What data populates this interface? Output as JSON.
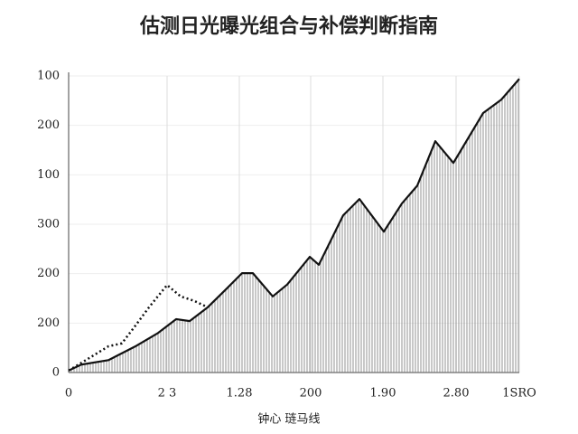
{
  "chart_data": {
    "type": "line",
    "title": "估测日光曝光组合与补偿判断指南",
    "x_label": "钟心 琏马线",
    "xlim": [
      0,
      499
    ],
    "ylim": [
      0,
      600
    ],
    "xticks": [
      {
        "value": 0,
        "label": "0"
      },
      {
        "value": 109,
        "label": "2 3"
      },
      {
        "value": 189,
        "label": "1.28"
      },
      {
        "value": 268,
        "label": "200"
      },
      {
        "value": 348,
        "label": "1.90"
      },
      {
        "value": 429,
        "label": "2.80"
      },
      {
        "value": 499,
        "label": "1SRO"
      }
    ],
    "yticks": [
      0,
      {
        "value": 100,
        "label": "200"
      },
      {
        "value": 200,
        "label": "200"
      },
      {
        "value": 300,
        "label": "300"
      },
      {
        "value": 400,
        "label": "100"
      },
      {
        "value": 500,
        "label": "200"
      },
      {
        "value": 600,
        "label": "100"
      }
    ],
    "grid": true,
    "area_fill": true,
    "series": [
      {
        "color": "#111111",
        "style": "solid",
        "x": [
          0,
          14,
          44,
          74,
          99,
          119,
          134,
          154,
          174,
          192,
          204,
          226,
          242,
          267,
          277,
          304,
          322,
          349,
          369,
          386,
          406,
          426,
          459,
          479,
          499
        ],
        "values": [
          4,
          16,
          25,
          53,
          80,
          108,
          104,
          132,
          168,
          201,
          201,
          154,
          178,
          234,
          218,
          318,
          351,
          285,
          342,
          378,
          468,
          424,
          525,
          552,
          594
        ]
      },
      {
        "color": "#111111",
        "style": "dotted",
        "x": [
          0,
          19,
          44,
          59,
          74,
          89,
          109,
          124,
          139,
          154
        ],
        "values": [
          4,
          25,
          53,
          59,
          95,
          132,
          177,
          154,
          145,
          132
        ]
      }
    ]
  }
}
